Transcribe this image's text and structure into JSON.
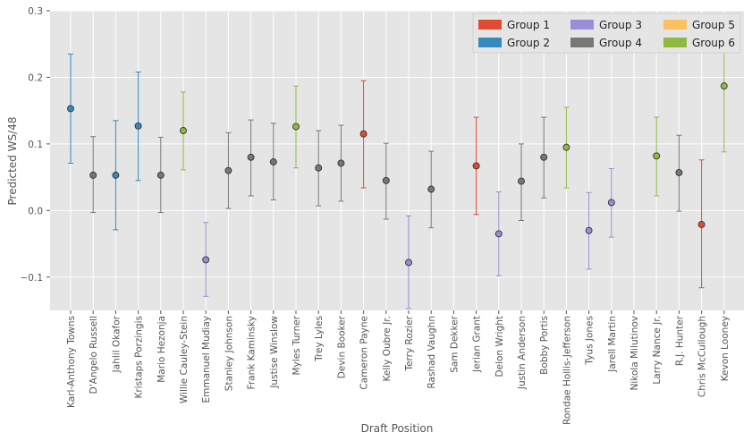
{
  "chart_data": {
    "type": "scatter",
    "xlabel": "Draft Position",
    "ylabel": "Predicted WS/48",
    "ylim": [
      -0.15,
      0.3
    ],
    "yticks": [
      -0.1,
      0.0,
      0.1,
      0.2,
      0.3
    ],
    "ytick_labels": [
      "−0.1",
      "0.0",
      "0.1",
      "0.2",
      "0.3"
    ],
    "grid": true,
    "legend_position": "top-right",
    "groups": [
      {
        "name": "Group 1",
        "color": "#e24a33"
      },
      {
        "name": "Group 2",
        "color": "#348abd"
      },
      {
        "name": "Group 3",
        "color": "#988ed5"
      },
      {
        "name": "Group 4",
        "color": "#777777"
      },
      {
        "name": "Group 5",
        "color": "#fbc15e"
      },
      {
        "name": "Group 6",
        "color": "#8eba42"
      }
    ],
    "points": [
      {
        "player": "Karl-Anthony Towns",
        "group": 2,
        "value": 0.153,
        "lower": 0.071,
        "upper": 0.235
      },
      {
        "player": "D'Angelo Russell",
        "group": 4,
        "value": 0.053,
        "lower": -0.003,
        "upper": 0.111
      },
      {
        "player": "Jahlil Okafor",
        "group": 2,
        "value": 0.053,
        "lower": -0.029,
        "upper": 0.135
      },
      {
        "player": "Kristaps Porzingis",
        "group": 2,
        "value": 0.127,
        "lower": 0.045,
        "upper": 0.208
      },
      {
        "player": "Mario Hezonja",
        "group": 4,
        "value": 0.053,
        "lower": -0.003,
        "upper": 0.11
      },
      {
        "player": "Willie Cauley-Stein",
        "group": 6,
        "value": 0.12,
        "lower": 0.061,
        "upper": 0.178
      },
      {
        "player": "Emmanuel Mudiay",
        "group": 3,
        "value": -0.074,
        "lower": -0.129,
        "upper": -0.018
      },
      {
        "player": "Stanley Johnson",
        "group": 4,
        "value": 0.06,
        "lower": 0.003,
        "upper": 0.117
      },
      {
        "player": "Frank Kaminsky",
        "group": 4,
        "value": 0.08,
        "lower": 0.022,
        "upper": 0.136
      },
      {
        "player": "Justise Winslow",
        "group": 4,
        "value": 0.073,
        "lower": 0.016,
        "upper": 0.131
      },
      {
        "player": "Myles Turner",
        "group": 6,
        "value": 0.126,
        "lower": 0.064,
        "upper": 0.187
      },
      {
        "player": "Trey Lyles",
        "group": 4,
        "value": 0.064,
        "lower": 0.007,
        "upper": 0.12
      },
      {
        "player": "Devin Booker",
        "group": 4,
        "value": 0.071,
        "lower": 0.014,
        "upper": 0.128
      },
      {
        "player": "Cameron Payne",
        "group": 1,
        "value": 0.115,
        "lower": 0.034,
        "upper": 0.195
      },
      {
        "player": "Kelly Oubre Jr.",
        "group": 4,
        "value": 0.045,
        "lower": -0.013,
        "upper": 0.101
      },
      {
        "player": "Terry Rozier",
        "group": 3,
        "value": -0.078,
        "lower": -0.147,
        "upper": -0.008
      },
      {
        "player": "Rashad Vaughn",
        "group": 4,
        "value": 0.032,
        "lower": -0.026,
        "upper": 0.089
      },
      {
        "player": "Sam Dekker",
        "group": null,
        "value": null,
        "lower": null,
        "upper": null
      },
      {
        "player": "Jerian Grant",
        "group": 1,
        "value": 0.067,
        "lower": -0.006,
        "upper": 0.14
      },
      {
        "player": "Delon Wright",
        "group": 3,
        "value": -0.035,
        "lower": -0.098,
        "upper": 0.028
      },
      {
        "player": "Justin Anderson",
        "group": 4,
        "value": 0.044,
        "lower": -0.015,
        "upper": 0.1
      },
      {
        "player": "Bobby Portis",
        "group": 4,
        "value": 0.08,
        "lower": 0.019,
        "upper": 0.14
      },
      {
        "player": "Rondae Hollis-Jefferson",
        "group": 6,
        "value": 0.095,
        "lower": 0.034,
        "upper": 0.155
      },
      {
        "player": "Tyus Jones",
        "group": 3,
        "value": -0.03,
        "lower": -0.088,
        "upper": 0.027
      },
      {
        "player": "Jarell Martin",
        "group": 3,
        "value": 0.012,
        "lower": -0.04,
        "upper": 0.063
      },
      {
        "player": "Nikola Milutinov",
        "group": null,
        "value": null,
        "lower": null,
        "upper": null
      },
      {
        "player": "Larry Nance Jr.",
        "group": 6,
        "value": 0.082,
        "lower": 0.022,
        "upper": 0.14
      },
      {
        "player": "R.J. Hunter",
        "group": 4,
        "value": 0.057,
        "lower": -0.001,
        "upper": 0.113
      },
      {
        "player": "Chris McCullough",
        "group": 1,
        "value": -0.021,
        "lower": -0.116,
        "upper": 0.076
      },
      {
        "player": "Kevon Looney",
        "group": 6,
        "value": 0.187,
        "lower": 0.088,
        "upper": 0.285
      }
    ]
  }
}
